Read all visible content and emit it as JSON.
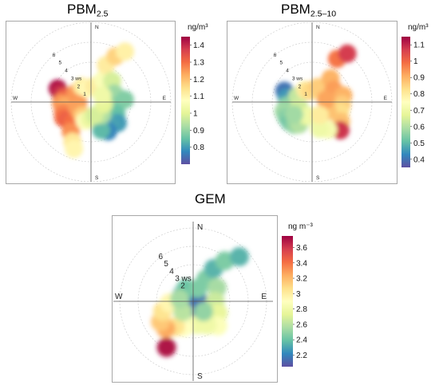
{
  "figure": {
    "plots": [
      {
        "id": "pbm25",
        "title_main": "PBM",
        "title_sub": "2.5",
        "colorbar": {
          "unit": "ng/m³",
          "min": 0.7,
          "max": 1.45,
          "ticks": [
            "0.8",
            "0.9",
            "1",
            "1.1",
            "1.2",
            "1.3",
            "1.4"
          ],
          "tick_values": [
            0.8,
            0.9,
            1.0,
            1.1,
            1.2,
            1.3,
            1.4
          ]
        },
        "compass": {
          "N": "N",
          "E": "E",
          "S": "S",
          "W": "W"
        },
        "ws_labels": [
          "1",
          "2",
          "3 ws",
          "4",
          "5",
          "6"
        ],
        "ws_values": [
          1,
          2,
          3,
          4,
          5,
          6
        ]
      },
      {
        "id": "pbm25_10",
        "title_main": "PBM",
        "title_sub": "2.5–10",
        "colorbar": {
          "unit": "ng/m³",
          "min": 0.35,
          "max": 1.15,
          "ticks": [
            "0.4",
            "0.5",
            "0.6",
            "0.7",
            "0.8",
            "0.9",
            "1",
            "1.1"
          ],
          "tick_values": [
            0.4,
            0.5,
            0.6,
            0.7,
            0.8,
            0.9,
            1.0,
            1.1
          ]
        },
        "compass": {
          "N": "N",
          "E": "E",
          "S": "S",
          "W": "W"
        },
        "ws_labels": [
          "1",
          "2",
          "3 ws",
          "4",
          "5",
          "6"
        ],
        "ws_values": [
          1,
          2,
          3,
          4,
          5,
          6
        ]
      },
      {
        "id": "gem",
        "title_main": "GEM",
        "title_sub": "",
        "colorbar": {
          "unit": "ng m⁻³",
          "min": 2.05,
          "max": 3.75,
          "ticks": [
            "2.2",
            "2.4",
            "2.6",
            "2.8",
            "3",
            "3.2",
            "3.4",
            "3.6"
          ],
          "tick_values": [
            2.2,
            2.4,
            2.6,
            2.8,
            3.0,
            3.2,
            3.4,
            3.6
          ]
        },
        "compass": {
          "N": "N",
          "E": "E",
          "S": "S",
          "W": "W"
        },
        "ws_labels": [
          "2",
          "3 ws",
          "4",
          "5",
          "6"
        ],
        "ws_values": [
          2,
          3,
          4,
          5,
          6
        ]
      }
    ],
    "colors": {
      "palette": [
        "#5e4fa2",
        "#3288bd",
        "#66c2a5",
        "#abdda4",
        "#e6f598",
        "#ffffbf",
        "#fee08b",
        "#fdae61",
        "#f46d43",
        "#d53e4f",
        "#9e0142"
      ],
      "grid": "#c8c8c8",
      "axis": "#555555",
      "frame": "#a8a8a8"
    }
  },
  "chart_data": [
    {
      "type": "polar-plot",
      "title": "PBM2.5",
      "unit": "ng/m³",
      "angular_axis": "wind direction",
      "radial_axis": "wind speed (ws)",
      "color_range": [
        0.7,
        1.45
      ],
      "cells": [
        {
          "dir": 292,
          "ws": 3.6,
          "value": 1.43
        },
        {
          "dir": 286,
          "ws": 3.2,
          "value": 1.4
        },
        {
          "dir": 280,
          "ws": 2.7,
          "value": 1.32
        },
        {
          "dir": 268,
          "ws": 3.0,
          "value": 1.25
        },
        {
          "dir": 260,
          "ws": 2.6,
          "value": 1.22
        },
        {
          "dir": 250,
          "ws": 3.0,
          "value": 1.27
        },
        {
          "dir": 240,
          "ws": 3.2,
          "value": 1.3
        },
        {
          "dir": 232,
          "ws": 3.0,
          "value": 1.32
        },
        {
          "dir": 222,
          "ws": 2.8,
          "value": 1.3
        },
        {
          "dir": 214,
          "ws": 3.6,
          "value": 1.26
        },
        {
          "dir": 205,
          "ws": 4.4,
          "value": 1.13
        },
        {
          "dir": 300,
          "ws": 1.8,
          "value": 1.25
        },
        {
          "dir": 270,
          "ws": 1.3,
          "value": 1.25
        },
        {
          "dir": 245,
          "ws": 1.5,
          "value": 1.24
        },
        {
          "dir": 212,
          "ws": 1.6,
          "value": 1.18
        },
        {
          "dir": 198,
          "ws": 2.0,
          "value": 1.08
        },
        {
          "dir": 185,
          "ws": 1.7,
          "value": 1.02
        },
        {
          "dir": 330,
          "ws": 1.8,
          "value": 1.12
        },
        {
          "dir": 345,
          "ws": 1.4,
          "value": 1.09
        },
        {
          "dir": 10,
          "ws": 1.6,
          "value": 1.12
        },
        {
          "dir": 28,
          "ws": 2.5,
          "value": 1.06
        },
        {
          "dir": 22,
          "ws": 4.0,
          "value": 1.12
        },
        {
          "dir": 28,
          "ws": 5.2,
          "value": 1.17
        },
        {
          "dir": 34,
          "ws": 6.1,
          "value": 1.11
        },
        {
          "dir": 45,
          "ws": 3.0,
          "value": 0.98
        },
        {
          "dir": 70,
          "ws": 2.5,
          "value": 0.91
        },
        {
          "dir": 86,
          "ws": 3.4,
          "value": 0.88
        },
        {
          "dir": 100,
          "ws": 2.6,
          "value": 0.88
        },
        {
          "dir": 115,
          "ws": 2.8,
          "value": 0.85
        },
        {
          "dir": 128,
          "ws": 3.4,
          "value": 0.8
        },
        {
          "dir": 140,
          "ws": 3.0,
          "value": 0.81
        },
        {
          "dir": 150,
          "ws": 3.4,
          "value": 0.77
        },
        {
          "dir": 160,
          "ws": 3.0,
          "value": 0.84
        },
        {
          "dir": 140,
          "ws": 1.7,
          "value": 0.93
        },
        {
          "dir": 165,
          "ws": 1.4,
          "value": 0.98
        },
        {
          "dir": 100,
          "ws": 1.3,
          "value": 1.0
        },
        {
          "dir": 60,
          "ws": 1.3,
          "value": 1.03
        },
        {
          "dir": 200,
          "ws": 5.0,
          "value": 1.1
        }
      ]
    },
    {
      "type": "polar-plot",
      "title": "PBM2.5–10",
      "unit": "ng/m³",
      "angular_axis": "wind direction",
      "radial_axis": "wind speed (ws)",
      "color_range": [
        0.35,
        1.15
      ],
      "cells": [
        {
          "dir": 292,
          "ws": 3.0,
          "value": 0.4
        },
        {
          "dir": 280,
          "ws": 2.6,
          "value": 0.45
        },
        {
          "dir": 262,
          "ws": 2.6,
          "value": 0.55
        },
        {
          "dir": 252,
          "ws": 3.0,
          "value": 0.58
        },
        {
          "dir": 240,
          "ws": 3.0,
          "value": 0.55
        },
        {
          "dir": 228,
          "ws": 3.0,
          "value": 0.52
        },
        {
          "dir": 218,
          "ws": 2.9,
          "value": 0.56
        },
        {
          "dir": 210,
          "ws": 2.6,
          "value": 0.6
        },
        {
          "dir": 292,
          "ws": 1.6,
          "value": 0.62
        },
        {
          "dir": 250,
          "ws": 1.4,
          "value": 0.64
        },
        {
          "dir": 200,
          "ws": 1.5,
          "value": 0.68
        },
        {
          "dir": 185,
          "ws": 1.4,
          "value": 0.7
        },
        {
          "dir": 330,
          "ws": 1.4,
          "value": 0.8
        },
        {
          "dir": 350,
          "ws": 1.1,
          "value": 0.84
        },
        {
          "dir": 20,
          "ws": 1.6,
          "value": 0.86
        },
        {
          "dir": 38,
          "ws": 3.0,
          "value": 0.9
        },
        {
          "dir": 30,
          "ws": 5.0,
          "value": 0.98
        },
        {
          "dir": 36,
          "ws": 6.0,
          "value": 1.07
        },
        {
          "dir": 60,
          "ws": 2.5,
          "value": 0.93
        },
        {
          "dir": 78,
          "ws": 3.2,
          "value": 0.9
        },
        {
          "dir": 95,
          "ws": 3.0,
          "value": 0.86
        },
        {
          "dir": 110,
          "ws": 3.0,
          "value": 0.83
        },
        {
          "dir": 124,
          "ws": 3.5,
          "value": 0.88
        },
        {
          "dir": 135,
          "ws": 4.0,
          "value": 1.08
        },
        {
          "dir": 150,
          "ws": 3.2,
          "value": 0.72
        },
        {
          "dir": 165,
          "ws": 2.8,
          "value": 0.7
        },
        {
          "dir": 120,
          "ws": 1.8,
          "value": 0.88
        },
        {
          "dir": 80,
          "ws": 1.4,
          "value": 0.92
        },
        {
          "dir": 150,
          "ws": 1.5,
          "value": 0.8
        },
        {
          "dir": 235,
          "ws": 2.2,
          "value": 0.58
        }
      ]
    },
    {
      "type": "polar-plot",
      "title": "GEM",
      "unit": "ng m⁻³",
      "angular_axis": "wind direction",
      "radial_axis": "wind speed (ws)",
      "color_range": [
        2.05,
        3.75
      ],
      "cells": [
        {
          "dir": 0,
          "ws": 0.6,
          "value": 2.1
        },
        {
          "dir": 90,
          "ws": 0.6,
          "value": 2.15
        },
        {
          "dir": 180,
          "ws": 0.6,
          "value": 2.12
        },
        {
          "dir": 270,
          "ws": 0.6,
          "value": 2.15
        },
        {
          "dir": 300,
          "ws": 1.4,
          "value": 2.3
        },
        {
          "dir": 330,
          "ws": 1.6,
          "value": 2.4
        },
        {
          "dir": 20,
          "ws": 1.5,
          "value": 2.45
        },
        {
          "dir": 30,
          "ws": 2.8,
          "value": 2.45
        },
        {
          "dir": 32,
          "ws": 4.2,
          "value": 2.35
        },
        {
          "dir": 38,
          "ws": 5.6,
          "value": 2.45
        },
        {
          "dir": 46,
          "ws": 7.0,
          "value": 2.35
        },
        {
          "dir": 60,
          "ws": 3.0,
          "value": 2.55
        },
        {
          "dir": 90,
          "ws": 2.4,
          "value": 2.65
        },
        {
          "dir": 115,
          "ws": 3.0,
          "value": 2.75
        },
        {
          "dir": 135,
          "ws": 3.8,
          "value": 2.88
        },
        {
          "dir": 150,
          "ws": 3.0,
          "value": 2.8
        },
        {
          "dir": 170,
          "ws": 2.6,
          "value": 2.8
        },
        {
          "dir": 200,
          "ws": 3.0,
          "value": 2.9
        },
        {
          "dir": 215,
          "ws": 3.4,
          "value": 3.05
        },
        {
          "dir": 225,
          "ws": 4.2,
          "value": 3.25
        },
        {
          "dir": 238,
          "ws": 4.2,
          "value": 3.15
        },
        {
          "dir": 252,
          "ws": 3.5,
          "value": 3.05
        },
        {
          "dir": 266,
          "ws": 2.6,
          "value": 2.95
        },
        {
          "dir": 210,
          "ws": 5.8,
          "value": 3.7
        },
        {
          "dir": 225,
          "ws": 1.6,
          "value": 2.6
        },
        {
          "dir": 135,
          "ws": 1.6,
          "value": 2.5
        },
        {
          "dir": 280,
          "ws": 1.5,
          "value": 2.55
        }
      ]
    }
  ]
}
